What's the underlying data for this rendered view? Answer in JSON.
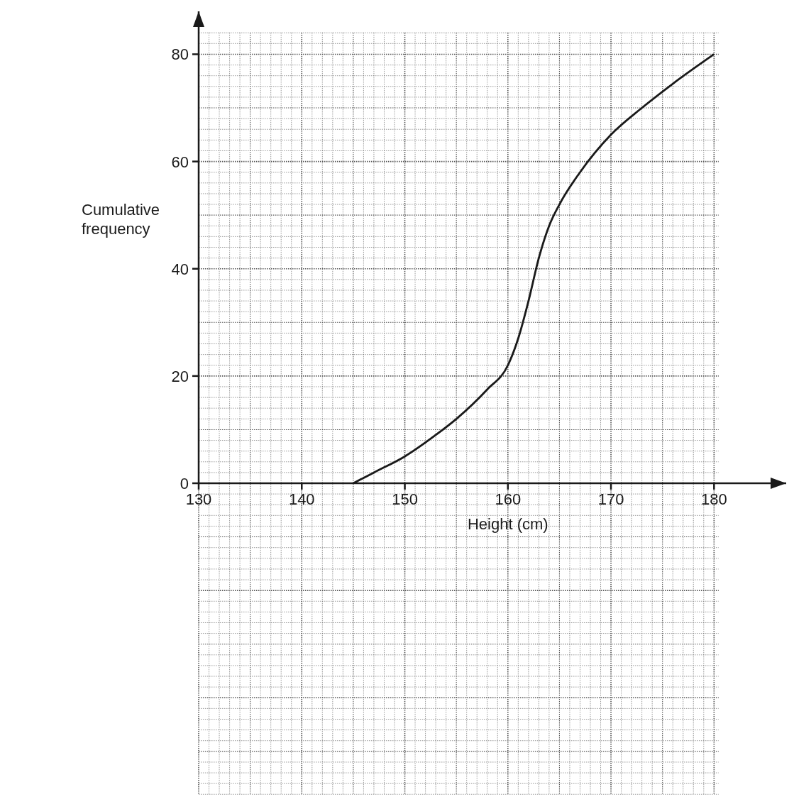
{
  "chart_data": {
    "type": "line",
    "xlabel": "Height (cm)",
    "ylabel": "Cumulative frequency",
    "xlim": [
      130,
      187
    ],
    "ylim": [
      0,
      88
    ],
    "xticks": [
      130,
      140,
      150,
      160,
      170,
      180
    ],
    "yticks": [
      0,
      20,
      40,
      60,
      80
    ],
    "grid": true,
    "marker": "none",
    "line_style": "solid",
    "series": [
      {
        "color": "#1a1a1a",
        "x": [
          145,
          147,
          150,
          153,
          155,
          158,
          160,
          161,
          162,
          163,
          164,
          165,
          167,
          170,
          173,
          176,
          180
        ],
        "values": [
          0,
          2,
          5,
          9,
          12,
          17.5,
          22,
          27,
          34,
          42,
          48,
          52,
          58,
          65,
          70,
          74.5,
          80
        ]
      }
    ]
  }
}
